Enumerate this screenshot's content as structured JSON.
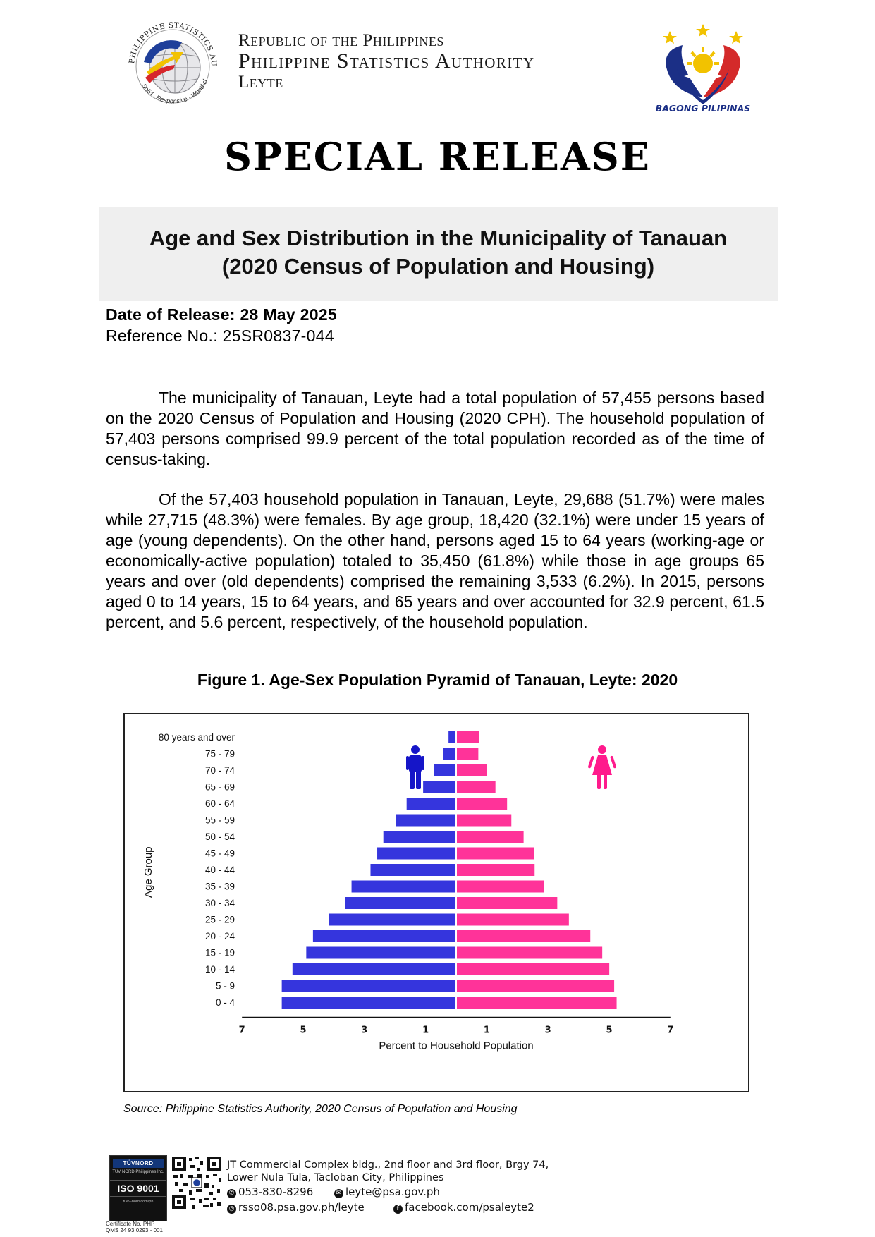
{
  "header": {
    "psa_logo": {
      "arc_text": "PHILIPPINE STATISTICS AUTHORITY",
      "tagline": "Solid · Responsive · World-class"
    },
    "agency_line1": "Republic of the Philippines",
    "agency_line2": "Philippine Statistics Authority",
    "agency_line3": "Leyte",
    "bagong_pilipinas": "BAGONG PILIPINAS"
  },
  "release_type": "SPECIAL RELEASE",
  "title_line1": "Age and Sex Distribution in the Municipality of Tanauan",
  "title_line2": "(2020 Census of Population and Housing)",
  "date_of_release": "Date of Release: 28 May 2025",
  "reference_no": "Reference No.: 25SR0837-044",
  "paragraph1": "The municipality of Tanauan, Leyte had a total population of 57,455 persons based on the 2020 Census of Population and Housing (2020 CPH). The household population of 57,403 persons comprised 99.9 percent of the total population recorded as of the time of census-taking.",
  "paragraph2": "Of the 57,403 household population in Tanauan, Leyte, 29,688 (51.7%) were males while 27,715 (48.3%) were females. By age group, 18,420 (32.1%) were under 15 years of age (young dependents). On the other hand, persons aged 15 to 64 years (working-age or economically-active population) totaled to 35,450 (61.8%) while those in age groups 65 years and over (old dependents) comprised the remaining 3,533 (6.2%). In 2015, persons aged 0 to 14 years, 15 to 64 years, and 65 years and over accounted for 32.9 percent, 61.5 percent, and 5.6 percent, respectively, of the household population.",
  "figure_title": "Figure 1. Age-Sex Population Pyramid of Tanauan, Leyte: 2020",
  "chart_data": {
    "type": "bar",
    "orientation": "horizontal-pyramid",
    "title": "",
    "xlabel": "Percent to Household Population",
    "ylabel": "Age Group",
    "xlim": [
      -7,
      7
    ],
    "x_tick_labels": [
      "7",
      "5",
      "3",
      "1",
      "1",
      "3",
      "5",
      "7"
    ],
    "x_tick_values": [
      -7,
      -5,
      -3,
      -1,
      1,
      3,
      5,
      7
    ],
    "categories": [
      "80 years and over",
      "75 - 79",
      "70 - 74",
      "65 - 69",
      "60 - 64",
      "55 - 59",
      "50 - 54",
      "45 - 49",
      "40 - 44",
      "35 - 39",
      "30 - 34",
      "25 - 29",
      "20 - 24",
      "15 - 19",
      "10 - 14",
      "5 - 9",
      "0 - 4"
    ],
    "series": [
      {
        "key": "male",
        "color": "#3535dd",
        "values": [
          0.25,
          0.42,
          0.72,
          1.08,
          1.62,
          1.98,
          2.38,
          2.58,
          2.8,
          3.42,
          3.62,
          4.15,
          4.68,
          4.9,
          5.35,
          5.7,
          5.7
        ]
      },
      {
        "key": "female",
        "color": "#ff3399",
        "values": [
          0.72,
          0.7,
          0.98,
          1.26,
          1.64,
          1.78,
          2.18,
          2.52,
          2.54,
          2.84,
          3.28,
          3.66,
          4.36,
          4.75,
          4.98,
          5.14,
          5.22
        ]
      }
    ],
    "icons": [
      "male-figure-icon",
      "female-figure-icon"
    ],
    "grid": false,
    "legend": "none"
  },
  "source_note": "Source: Philippine Statistics Authority, 2020 Census of Population and Housing",
  "footer": {
    "iso_brand": "TÜVNORD",
    "iso_org": "TÜV NORD Philippines Inc.",
    "iso_standard": "ISO 9001",
    "iso_small": "tuev-nord.com/ph",
    "certificate_line1": "Certificate No. PHP",
    "certificate_line2": "QMS 24 93 0293 - 001",
    "address_line1": "JT Commercial Complex bldg., 2nd floor and 3rd floor, Brgy 74,",
    "address_line2": "Lower Nula Tula, Tacloban City, Philippines",
    "phone": "053-830-8296",
    "email": "leyte@psa.gov.ph",
    "website": "rsso08.psa.gov.ph/leyte",
    "facebook": "facebook.com/psaleyte2"
  }
}
